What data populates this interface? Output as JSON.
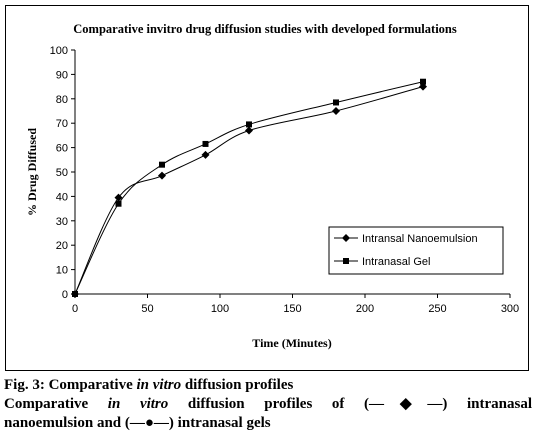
{
  "chart_data": {
    "type": "line",
    "title": "Comparative invitro drug diffusion studies with developed formulations",
    "xlabel": "Time (Minutes)",
    "ylabel": "% Drug Diffused",
    "xlim": [
      0,
      300
    ],
    "ylim": [
      0,
      100
    ],
    "xticks": [
      "0",
      "50",
      "100",
      "150",
      "200",
      "250",
      "300"
    ],
    "yticks": [
      "0",
      "10",
      "20",
      "30",
      "40",
      "50",
      "60",
      "70",
      "80",
      "90",
      "100"
    ],
    "grid": false,
    "legend_position": "right",
    "series": [
      {
        "name": "Intransal Nanoemulsion",
        "marker": "diamond",
        "color": "#000000",
        "x": [
          0,
          30,
          60,
          90,
          120,
          180,
          240
        ],
        "y": [
          0,
          39.5,
          48.5,
          57,
          67,
          75,
          85
        ]
      },
      {
        "name": "Intranasal Gel",
        "marker": "square",
        "color": "#000000",
        "x": [
          0,
          30,
          60,
          90,
          120,
          180,
          240
        ],
        "y": [
          0,
          37,
          53,
          61.5,
          69.5,
          78.5,
          87
        ]
      }
    ]
  },
  "caption": {
    "fig_label": "Fig. 3: Comparative ",
    "fig_italic": "in vitro",
    "fig_rest": " diffusion profiles",
    "body_a": "Comparative ",
    "body_italic": "in vitro",
    "body_b": " diffusion profiles of (—◆—) intranasal",
    "body_c": "nanoemulsion and (—●—) intranasal gels"
  }
}
